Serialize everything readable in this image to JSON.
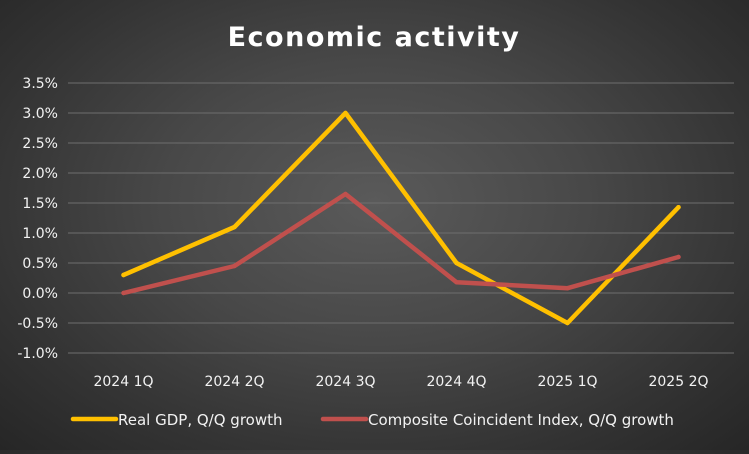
{
  "chart_data": {
    "type": "line",
    "title": "Economic activity",
    "categories": [
      "2024 1Q",
      "2024 2Q",
      "2024 3Q",
      "2024 4Q",
      "2025 1Q",
      "2025 2Q"
    ],
    "series": [
      {
        "name": "Real GDP, Q/Q growth",
        "color": "#ffc000",
        "values": [
          0.3,
          1.1,
          3.0,
          0.5,
          -0.5,
          1.43
        ]
      },
      {
        "name": "Composite Coincident Index, Q/Q growth",
        "color": "#c0504d",
        "values": [
          0.0,
          0.45,
          1.65,
          0.18,
          0.08,
          0.6
        ]
      }
    ],
    "yticks": [
      "-1.0%",
      "-0.5%",
      "0.0%",
      "0.5%",
      "1.0%",
      "1.5%",
      "2.0%",
      "2.5%",
      "3.0%",
      "3.5%"
    ],
    "ylim": [
      -1.0,
      3.5
    ],
    "ystep": 0.5,
    "xlabel": "",
    "ylabel": "",
    "grid": true,
    "legend": "bottom"
  }
}
